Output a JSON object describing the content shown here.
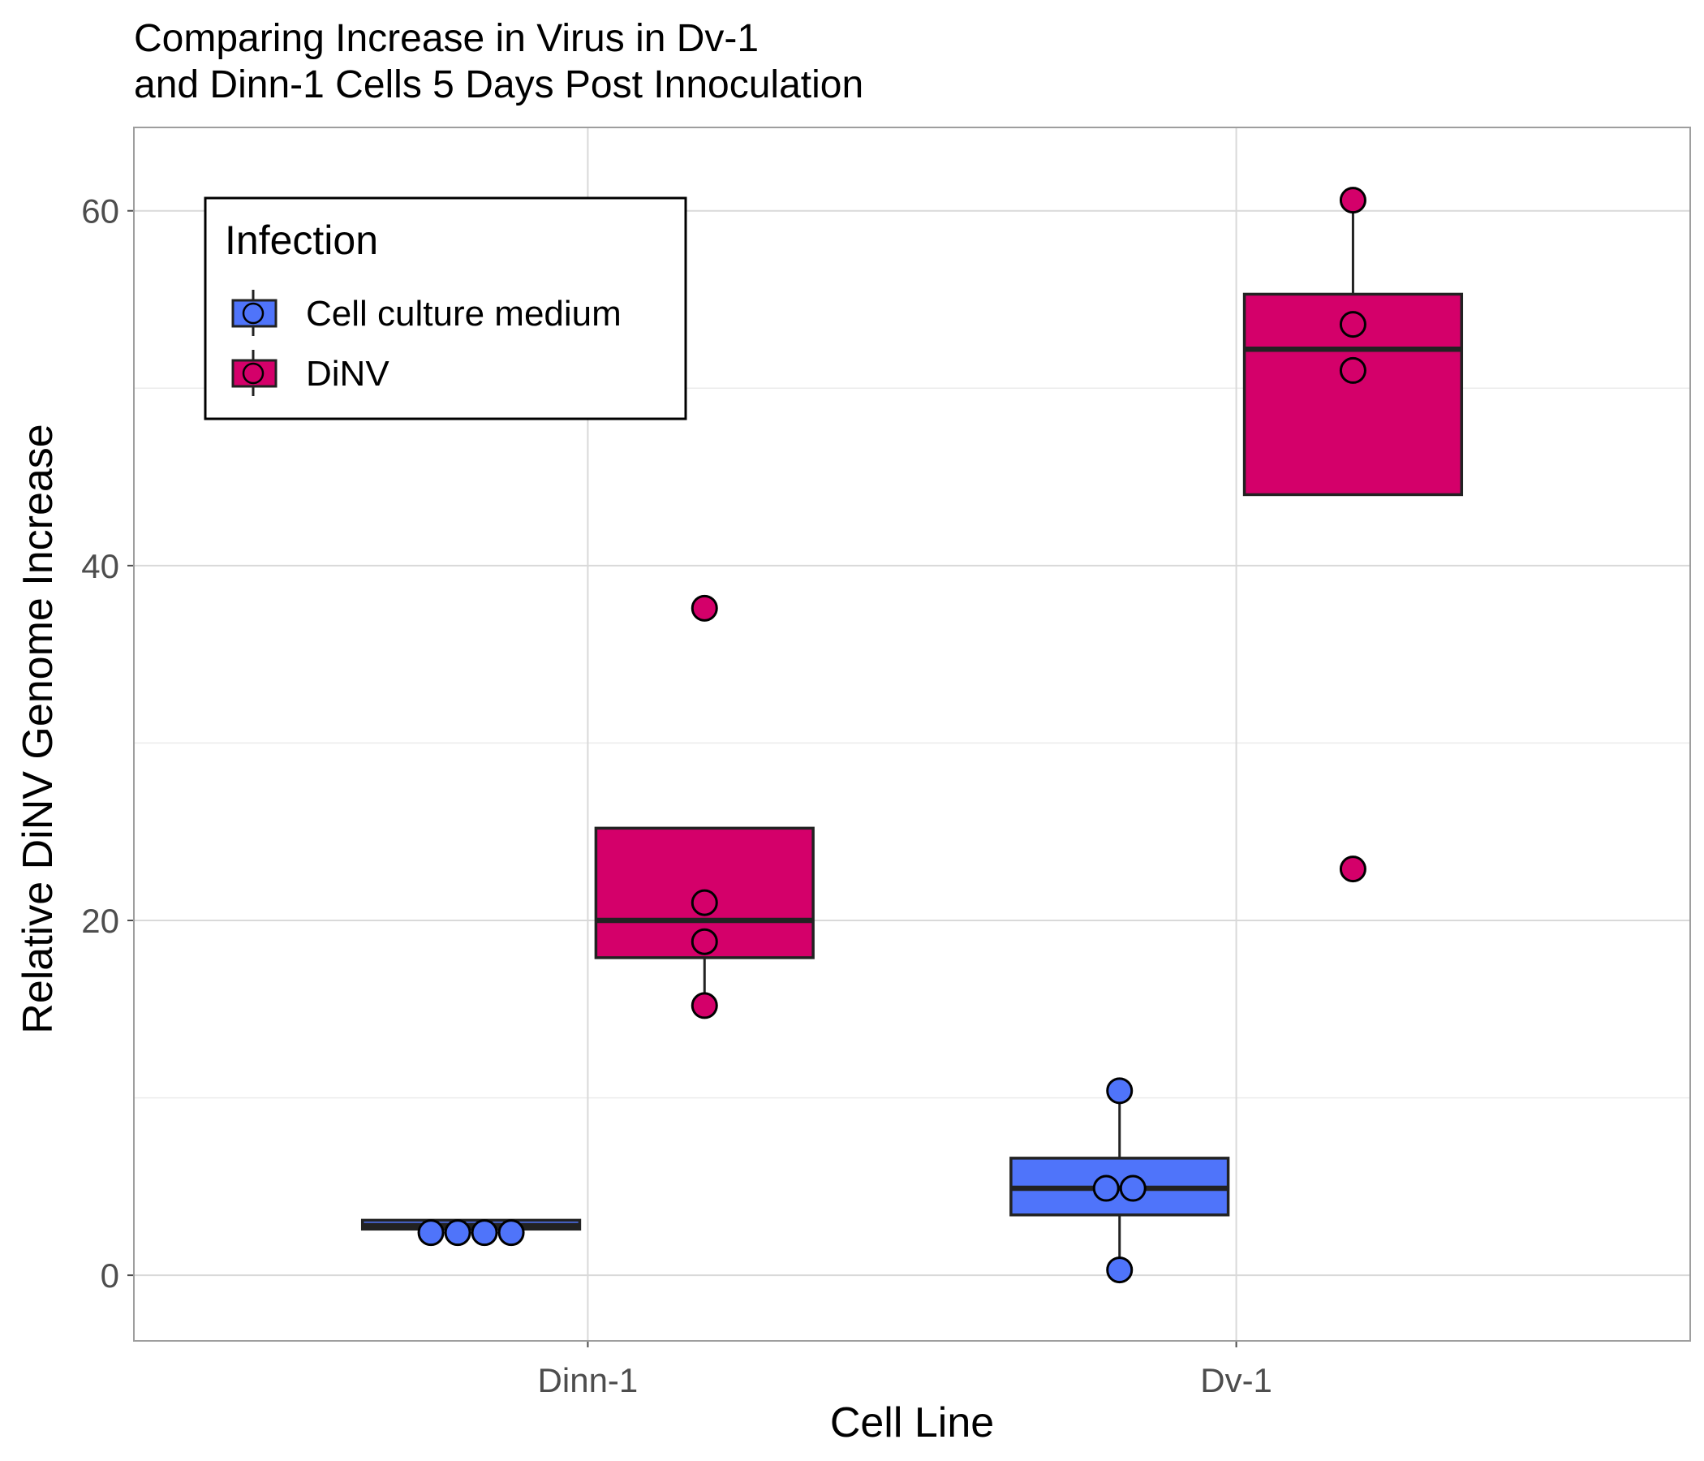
{
  "chart_data": {
    "type": "box",
    "title_lines": [
      "Comparing Increase in Virus in Dv-1",
      "and Dinn-1 Cells 5 Days Post Innoculation"
    ],
    "xlabel": "Cell Line",
    "ylabel": "Relative DiNV Genome Increase",
    "categories": [
      "Dinn-1",
      "Dv-1"
    ],
    "ylim": [
      -3.7,
      64.7
    ],
    "yticks": [
      0,
      20,
      40,
      60
    ],
    "grid": true,
    "legend": {
      "title": "Infection",
      "position": "top-left"
    },
    "series": [
      {
        "name": "Cell culture medium",
        "color": "#4f74fa",
        "boxes": [
          {
            "category": "Dinn-1",
            "q1": 2.6,
            "median": 2.8,
            "q3": 3.1,
            "whisker_low": 2.6,
            "whisker_high": 3.1,
            "points": [
              2.4,
              2.4,
              2.4,
              2.4
            ],
            "outliers": []
          },
          {
            "category": "Dv-1",
            "q1": 3.4,
            "median": 4.9,
            "q3": 6.6,
            "whisker_low": 0.3,
            "whisker_high": 10.4,
            "points": [
              10.4,
              4.9,
              4.9,
              0.3
            ],
            "outliers": []
          }
        ]
      },
      {
        "name": "DiNV",
        "color": "#d4006a",
        "boxes": [
          {
            "category": "Dinn-1",
            "q1": 17.9,
            "median": 20.0,
            "q3": 25.2,
            "whisker_low": 15.2,
            "whisker_high": 25.2,
            "points": [
              21.0,
              18.8,
              15.2
            ],
            "outliers": [
              37.6
            ]
          },
          {
            "category": "Dv-1",
            "q1": 44.0,
            "median": 52.2,
            "q3": 55.3,
            "whisker_low": 44.0,
            "whisker_high": 60.6,
            "points": [
              60.6,
              53.6,
              51.0
            ],
            "outliers": [
              22.9
            ]
          }
        ]
      }
    ]
  }
}
